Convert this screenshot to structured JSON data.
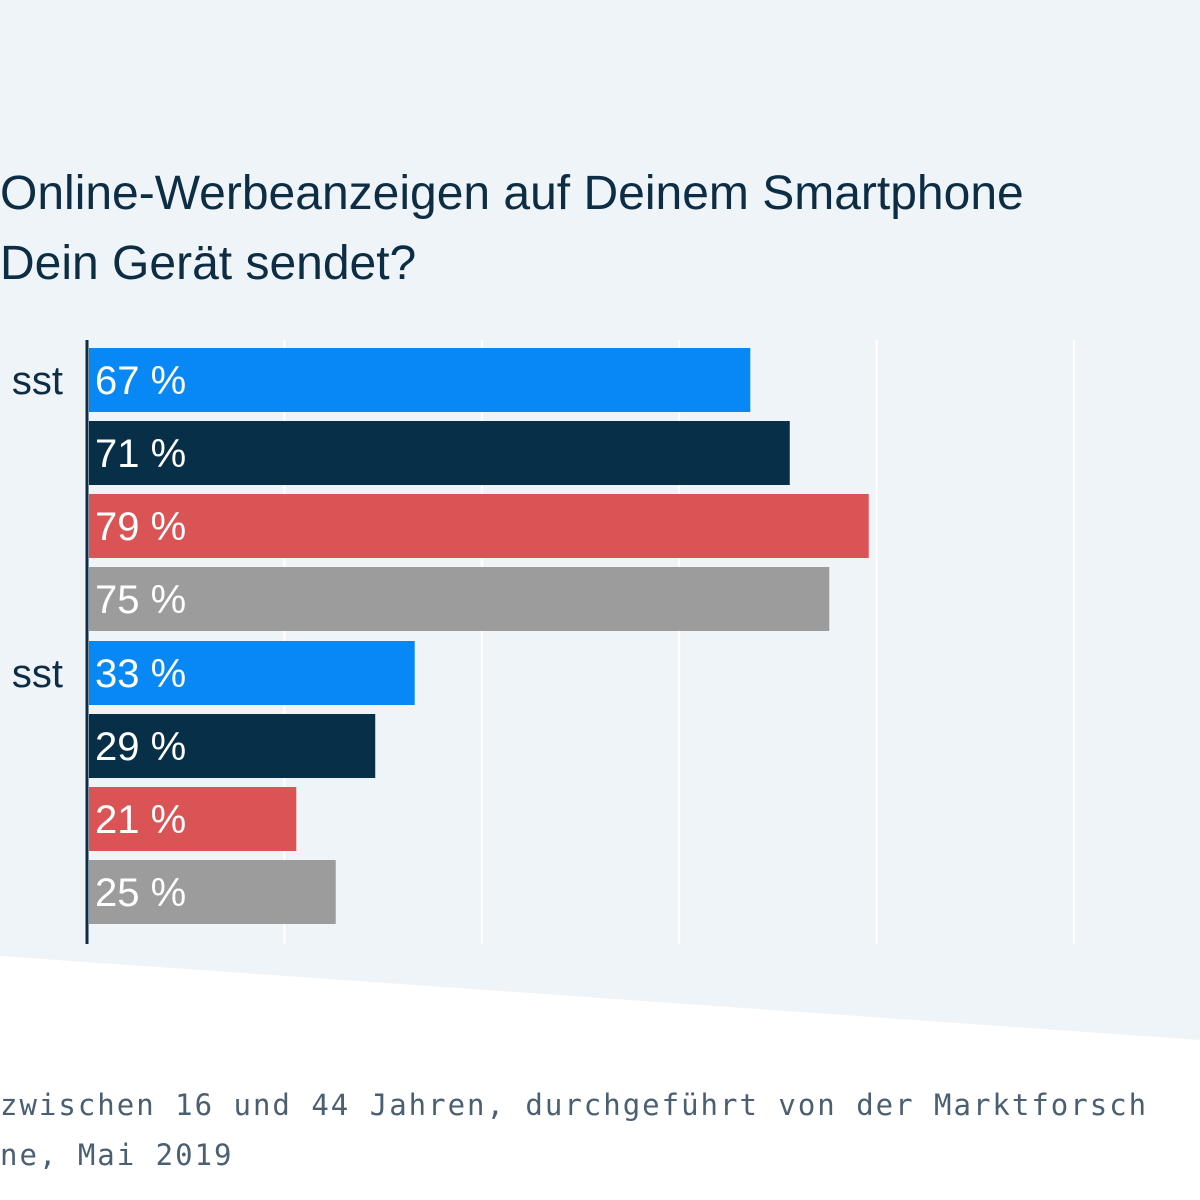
{
  "title": {
    "line1": "Online-Werbeanzeigen auf Deinem Smartphone",
    "line2": "Dein Gerät sendet?"
  },
  "footnote": {
    "line1": "zwischen 16 und 44 Jahren, durchgeführt von der Marktforsch",
    "line2": "ne, Mai 2019"
  },
  "colors": {
    "background_panel": "#eff4f8",
    "axis": "#0d2d44",
    "gridline": "#ffffff",
    "value_label": "#ffffff",
    "category_label": "#0d2d44"
  },
  "chart_data": {
    "type": "bar",
    "orientation": "horizontal",
    "title": "Online-Werbeanzeigen auf Deinem Smartphone … Dein Gerät sendet?",
    "value_suffix": " %",
    "xlim": [
      0,
      100
    ],
    "grid": true,
    "groups": [
      {
        "label": "sst",
        "bars": [
          {
            "value": 67,
            "color": "#0788f5"
          },
          {
            "value": 71,
            "color": "#082f48"
          },
          {
            "value": 79,
            "color": "#db5455"
          },
          {
            "value": 75,
            "color": "#9c9c9c"
          }
        ]
      },
      {
        "label": "sst",
        "bars": [
          {
            "value": 33,
            "color": "#0788f5"
          },
          {
            "value": 29,
            "color": "#082f48"
          },
          {
            "value": 21,
            "color": "#db5455"
          },
          {
            "value": 25,
            "color": "#9c9c9c"
          }
        ]
      }
    ]
  }
}
